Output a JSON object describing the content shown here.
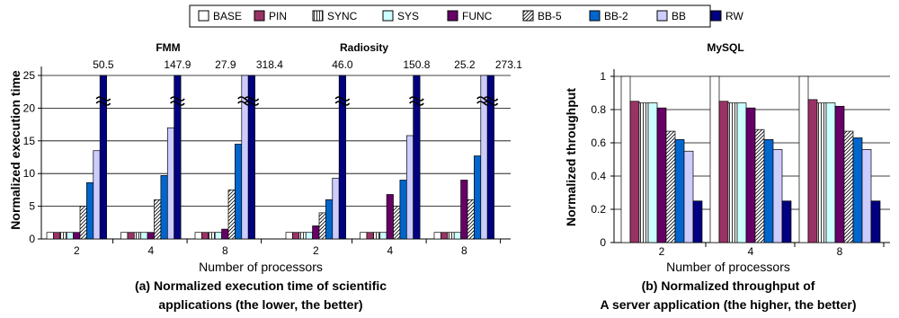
{
  "legend": [
    {
      "key": "BASE",
      "label": "BASE",
      "color": "#ffffff",
      "pattern": "none"
    },
    {
      "key": "PIN",
      "label": "PIN",
      "color": "#993366",
      "pattern": "none"
    },
    {
      "key": "SYNC",
      "label": "SYNC",
      "color": "#ffffff",
      "pattern": "vertical-lines"
    },
    {
      "key": "SYS",
      "label": "SYS",
      "color": "#ccffff",
      "pattern": "none"
    },
    {
      "key": "FUNC",
      "label": "FUNC",
      "color": "#660066",
      "pattern": "none"
    },
    {
      "key": "BB-5",
      "label": "BB-5",
      "color": "#ffffff",
      "pattern": "diagonal-hatch"
    },
    {
      "key": "BB-2",
      "label": "BB-2",
      "color": "#0066cc",
      "pattern": "none"
    },
    {
      "key": "BB",
      "label": "BB",
      "color": "#ccccff",
      "pattern": "none"
    },
    {
      "key": "RW",
      "label": "RW",
      "color": "#000080",
      "pattern": "none"
    }
  ],
  "chart_data": [
    {
      "type": "bar",
      "ylabel": "Normalized execution time",
      "xlabel": "Number of processors",
      "caption_line1": "(a) Normalized execution time of scientific",
      "caption_line2": "applications (the lower, the better)",
      "ylim": [
        0,
        25
      ],
      "yticks": [
        "0",
        "5",
        "10",
        "15",
        "20",
        "25"
      ],
      "grid": true,
      "axis_break": true,
      "groups": [
        {
          "title": "FMM",
          "categories": [
            "2",
            "4",
            "8"
          ],
          "series": [
            {
              "name": "BASE",
              "values": [
                1,
                1,
                1
              ]
            },
            {
              "name": "PIN",
              "values": [
                1,
                1,
                1
              ]
            },
            {
              "name": "SYNC",
              "values": [
                1,
                1,
                1
              ]
            },
            {
              "name": "SYS",
              "values": [
                1,
                1,
                1
              ]
            },
            {
              "name": "FUNC",
              "values": [
                1,
                1,
                1.5
              ]
            },
            {
              "name": "BB-5",
              "values": [
                5,
                6,
                7.5
              ]
            },
            {
              "name": "BB-2",
              "values": [
                8.6,
                9.7,
                14.5
              ]
            },
            {
              "name": "BB",
              "values": [
                13.5,
                17,
                27.9
              ]
            },
            {
              "name": "RW",
              "values": [
                50.5,
                147.9,
                318.4
              ]
            }
          ],
          "overflow_labels": [
            {
              "series": "RW",
              "category": "2",
              "text": "50.5"
            },
            {
              "series": "RW",
              "category": "4",
              "text": "147.9"
            },
            {
              "series": "BB",
              "category": "8",
              "text": "27.9"
            },
            {
              "series": "RW",
              "category": "8",
              "text": "318.4"
            }
          ]
        },
        {
          "title": "Radiosity",
          "categories": [
            "2",
            "4",
            "8"
          ],
          "series": [
            {
              "name": "BASE",
              "values": [
                1,
                1,
                1
              ]
            },
            {
              "name": "PIN",
              "values": [
                1,
                1,
                1
              ]
            },
            {
              "name": "SYNC",
              "values": [
                1,
                1,
                1
              ]
            },
            {
              "name": "SYS",
              "values": [
                1,
                1,
                1
              ]
            },
            {
              "name": "FUNC",
              "values": [
                2,
                6.8,
                9
              ]
            },
            {
              "name": "BB-5",
              "values": [
                4,
                5,
                6
              ]
            },
            {
              "name": "BB-2",
              "values": [
                6,
                9,
                12.7
              ]
            },
            {
              "name": "BB",
              "values": [
                9.3,
                15.8,
                25.2
              ]
            },
            {
              "name": "RW",
              "values": [
                46.0,
                150.8,
                273.1
              ]
            }
          ],
          "overflow_labels": [
            {
              "series": "RW",
              "category": "2",
              "text": "46.0"
            },
            {
              "series": "RW",
              "category": "4",
              "text": "150.8"
            },
            {
              "series": "BB",
              "category": "8",
              "text": "25.2"
            },
            {
              "series": "RW",
              "category": "8",
              "text": "273.1"
            }
          ]
        }
      ]
    },
    {
      "type": "bar",
      "title": "MySQL",
      "ylabel": "Normalized throughput",
      "xlabel": "Number of processors",
      "caption_line1": "(b) Normalized throughput of",
      "caption_line2": "A server application (the higher, the better)",
      "ylim": [
        0,
        1
      ],
      "yticks": [
        "0",
        "0.2",
        "0.4",
        "0.6",
        "0.8",
        "1"
      ],
      "grid": true,
      "categories": [
        "2",
        "4",
        "8"
      ],
      "series": [
        {
          "name": "BASE",
          "values": [
            1,
            1,
            1
          ]
        },
        {
          "name": "PIN",
          "values": [
            0.85,
            0.85,
            0.86
          ]
        },
        {
          "name": "SYNC",
          "values": [
            0.84,
            0.84,
            0.84
          ]
        },
        {
          "name": "SYS",
          "values": [
            0.84,
            0.84,
            0.84
          ]
        },
        {
          "name": "FUNC",
          "values": [
            0.81,
            0.81,
            0.82
          ]
        },
        {
          "name": "BB-5",
          "values": [
            0.67,
            0.68,
            0.67
          ]
        },
        {
          "name": "BB-2",
          "values": [
            0.62,
            0.62,
            0.63
          ]
        },
        {
          "name": "BB",
          "values": [
            0.55,
            0.56,
            0.56
          ]
        },
        {
          "name": "RW",
          "values": [
            0.25,
            0.25,
            0.25
          ]
        }
      ]
    }
  ]
}
